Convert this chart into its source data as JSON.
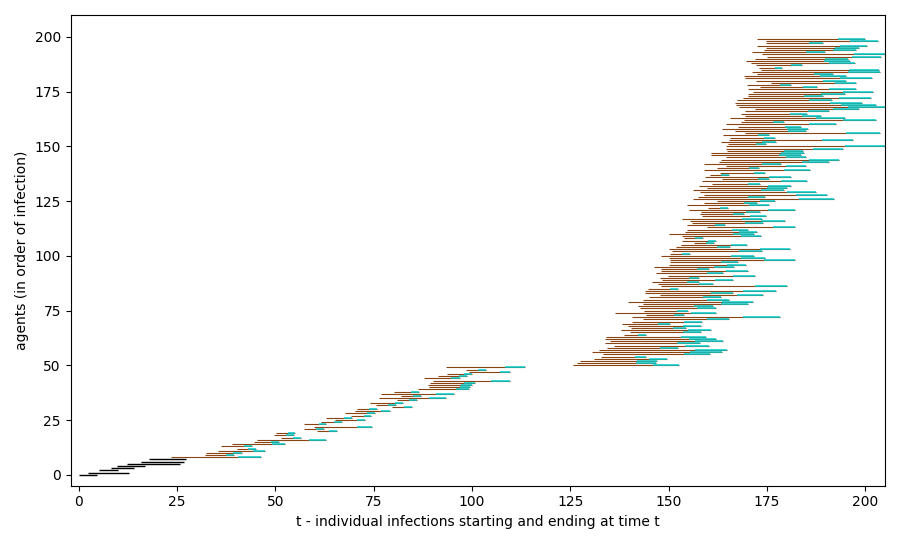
{
  "xlabel": "t - individual infections starting and ending at time t",
  "ylabel": "agents (in order of infection)",
  "xlim": [
    -2,
    205
  ],
  "ylim": [
    -5,
    210
  ],
  "xticks": [
    0,
    25,
    50,
    75,
    100,
    125,
    150,
    175,
    200
  ],
  "yticks": [
    0,
    25,
    50,
    75,
    100,
    125,
    150,
    175,
    200
  ],
  "n_agents": 200,
  "color_end": "#00CED1",
  "color_bar": "#8B4513",
  "color_early": "#000000",
  "figsize": [
    9.0,
    5.44
  ],
  "dpi": 100,
  "random_seed": 42
}
